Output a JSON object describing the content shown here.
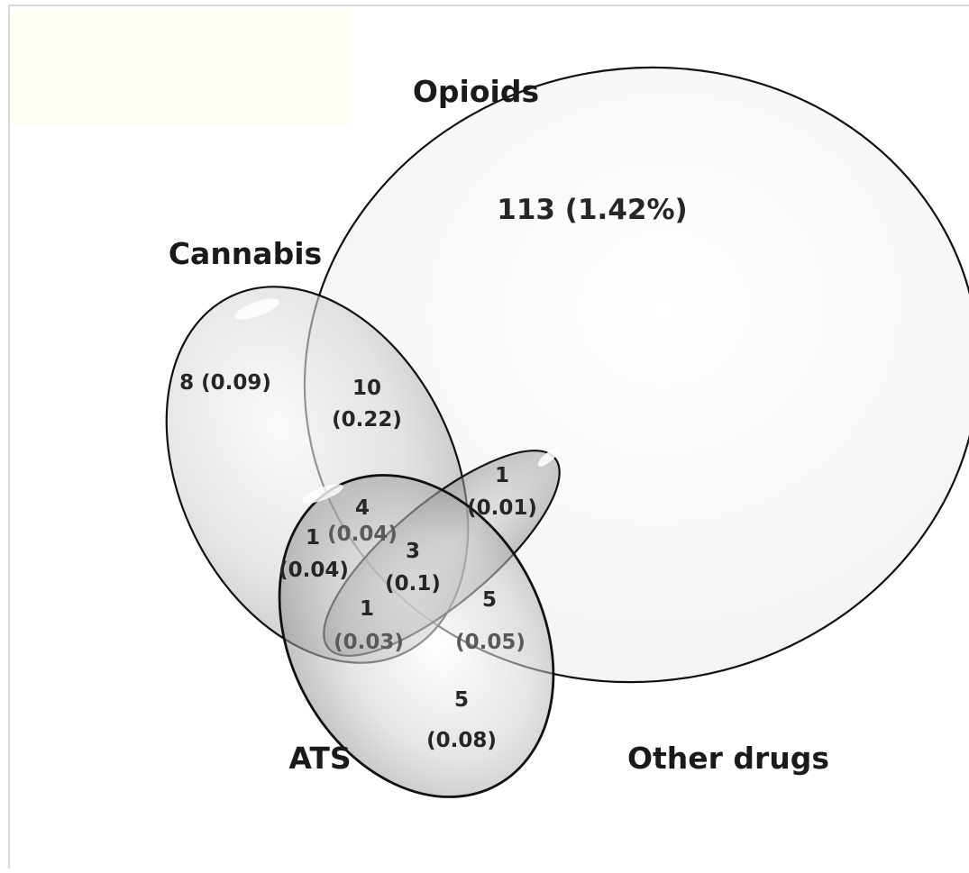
{
  "sets": {
    "opioids": "Opioids",
    "cannabis": "Cannabis",
    "ats": "ATS",
    "other": "Other drugs"
  },
  "regions": {
    "opioids_only": "113 (1.42%)",
    "cannabis_only": "8 (0.09)",
    "cannabis_opioids_n": "10",
    "cannabis_opioids_p": "(0.22)",
    "other_opioids_n": "1",
    "other_opioids_p": "(0.01)",
    "cannabis_ats_opioids_n": "4",
    "cannabis_ats_opioids_p": "(0.04)",
    "cannabis_ats_n": "1",
    "cannabis_ats_p": "(0.04)",
    "all_four_n": "3",
    "all_four_p": "(0.1)",
    "cannabis_ats_other_n": "1",
    "cannabis_ats_other_p": "(0.03)",
    "ats_opioids_n": "5",
    "ats_opioids_p": "(0.05)",
    "ats_only_n": "5",
    "ats_only_p": "(0.08)"
  },
  "colors": {
    "outline": "#111111",
    "opioids_fill": "#f4f4f4",
    "cannabis_fill": "#c8c8c8",
    "ats_fill": "#9c9c9c",
    "other_fill": "#7e7e7e"
  }
}
